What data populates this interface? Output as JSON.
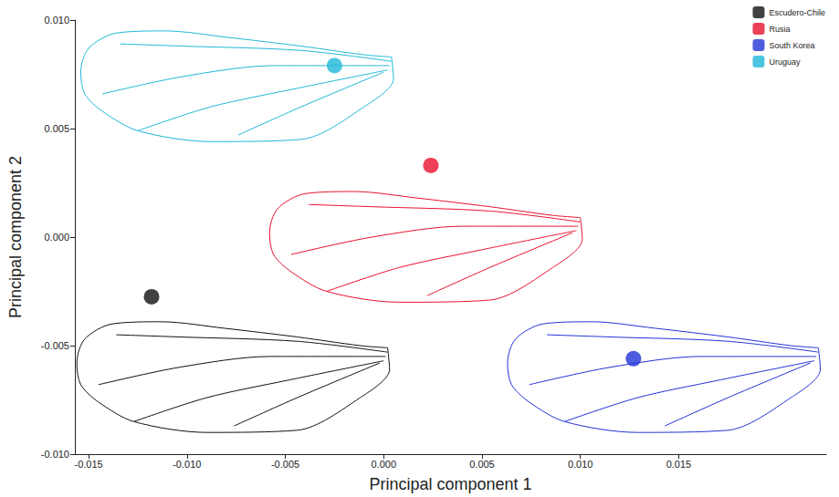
{
  "chart_data": {
    "type": "scatter",
    "xlabel": "Principal component 1",
    "ylabel": "Principal component 2",
    "xlim": [
      -0.0157,
      0.0225
    ],
    "ylim": [
      -0.01,
      0.01
    ],
    "xticks": [
      {
        "value": -0.015,
        "label": "-0.015"
      },
      {
        "value": -0.01,
        "label": "-0.010"
      },
      {
        "value": -0.005,
        "label": "-0.005"
      },
      {
        "value": 0.0,
        "label": "0.000"
      },
      {
        "value": 0.005,
        "label": "0.005"
      },
      {
        "value": 0.01,
        "label": "0.010"
      },
      {
        "value": 0.015,
        "label": "0.015"
      }
    ],
    "yticks": [
      {
        "value": -0.01,
        "label": "-0.010"
      },
      {
        "value": -0.005,
        "label": "-0.005"
      },
      {
        "value": 0.0,
        "label": "0.000"
      },
      {
        "value": 0.005,
        "label": "0.005"
      },
      {
        "value": 0.01,
        "label": "0.010"
      }
    ],
    "grid": false,
    "legend": "top-right",
    "marker": "circle",
    "series": [
      {
        "name": "Escudero-Chile",
        "color": "#111111",
        "x": [
          -0.0118
        ],
        "y": [
          -0.00275
        ]
      },
      {
        "name": "Rusia",
        "color": "#e8112d",
        "x": [
          0.0024
        ],
        "y": [
          0.0033
        ]
      },
      {
        "name": "South Korea",
        "color": "#2233d6",
        "x": [
          0.0127
        ],
        "y": [
          -0.0056
        ]
      },
      {
        "name": "Uruguay",
        "color": "#1fb8d8",
        "x": [
          -0.0025
        ],
        "y": [
          0.0079
        ]
      }
    ],
    "wings": [
      {
        "color": "#111111",
        "outline": [
          [
            0.0002,
            -0.0051
          ],
          [
            -0.0012,
            -0.005
          ],
          [
            -0.0044,
            -0.0046
          ],
          [
            -0.0081,
            -0.0042
          ],
          [
            -0.0113,
            -0.0039
          ],
          [
            -0.0138,
            -0.004
          ],
          [
            -0.0152,
            -0.0047
          ],
          [
            -0.0156,
            -0.0058
          ],
          [
            -0.0154,
            -0.0068
          ],
          [
            -0.0145,
            -0.0076
          ],
          [
            -0.0127,
            -0.0085
          ],
          [
            -0.009,
            -0.009
          ],
          [
            -0.0044,
            -0.0089
          ],
          [
            -0.0012,
            -0.0074
          ],
          [
            0.0003,
            -0.0061
          ],
          [
            0.0002,
            -0.0051
          ]
        ],
        "veins": [
          [
            [
              0.0002,
              -0.0053
            ],
            [
              -0.0044,
              -0.0048
            ],
            [
              -0.0104,
              -0.0046
            ],
            [
              -0.0136,
              -0.0045
            ]
          ],
          [
            [
              0.0001,
              -0.0055
            ],
            [
              -0.0058,
              -0.0055
            ],
            [
              -0.0104,
              -0.006
            ],
            [
              -0.0145,
              -0.0068
            ]
          ],
          [
            [
              0.0,
              -0.0057
            ],
            [
              -0.0049,
              -0.0066
            ],
            [
              -0.009,
              -0.0074
            ],
            [
              -0.0127,
              -0.0085
            ]
          ],
          [
            [
              -0.0002,
              -0.0058
            ],
            [
              -0.0044,
              -0.0074
            ],
            [
              -0.0076,
              -0.0087
            ]
          ]
        ]
      },
      {
        "color": "#e8112d",
        "outline": [
          [
            0.01,
            0.0009
          ],
          [
            0.0086,
            0.001
          ],
          [
            0.0054,
            0.0014
          ],
          [
            0.0017,
            0.0018
          ],
          [
            -0.0015,
            0.0021
          ],
          [
            -0.004,
            0.002
          ],
          [
            -0.0054,
            0.0013
          ],
          [
            -0.0058,
            0.0002
          ],
          [
            -0.0056,
            -0.0008
          ],
          [
            -0.0047,
            -0.0016
          ],
          [
            -0.0029,
            -0.0025
          ],
          [
            0.0008,
            -0.003
          ],
          [
            0.0054,
            -0.0029
          ],
          [
            0.0086,
            -0.0014
          ],
          [
            0.0101,
            -0.0001
          ],
          [
            0.01,
            0.0009
          ]
        ],
        "veins": [
          [
            [
              0.01,
              0.0007
            ],
            [
              0.0054,
              0.0012
            ],
            [
              -0.0006,
              0.0014
            ],
            [
              -0.0038,
              0.0015
            ]
          ],
          [
            [
              0.0099,
              0.0005
            ],
            [
              0.004,
              0.0005
            ],
            [
              -0.0006,
              0.0
            ],
            [
              -0.0047,
              -0.0008
            ]
          ],
          [
            [
              0.0098,
              0.0003
            ],
            [
              0.0049,
              -0.0006
            ],
            [
              0.0008,
              -0.0014
            ],
            [
              -0.0029,
              -0.0025
            ]
          ],
          [
            [
              0.0096,
              0.0002
            ],
            [
              0.0054,
              -0.0014
            ],
            [
              0.0022,
              -0.0027
            ]
          ]
        ]
      },
      {
        "color": "#2233d6",
        "outline": [
          [
            0.0221,
            -0.0051
          ],
          [
            0.0207,
            -0.005
          ],
          [
            0.0175,
            -0.0046
          ],
          [
            0.0138,
            -0.0042
          ],
          [
            0.0106,
            -0.0039
          ],
          [
            0.0081,
            -0.004
          ],
          [
            0.0067,
            -0.0047
          ],
          [
            0.0063,
            -0.0058
          ],
          [
            0.0065,
            -0.0068
          ],
          [
            0.0074,
            -0.0076
          ],
          [
            0.0092,
            -0.0085
          ],
          [
            0.0129,
            -0.009
          ],
          [
            0.0175,
            -0.0089
          ],
          [
            0.0207,
            -0.0074
          ],
          [
            0.0222,
            -0.0061
          ],
          [
            0.0221,
            -0.0051
          ]
        ],
        "veins": [
          [
            [
              0.0221,
              -0.0053
            ],
            [
              0.0175,
              -0.0048
            ],
            [
              0.0115,
              -0.0046
            ],
            [
              0.0083,
              -0.0045
            ]
          ],
          [
            [
              0.022,
              -0.0055
            ],
            [
              0.0161,
              -0.0055
            ],
            [
              0.0115,
              -0.006
            ],
            [
              0.0074,
              -0.0068
            ]
          ],
          [
            [
              0.0219,
              -0.0057
            ],
            [
              0.017,
              -0.0066
            ],
            [
              0.0129,
              -0.0074
            ],
            [
              0.0092,
              -0.0085
            ]
          ],
          [
            [
              0.0217,
              -0.0058
            ],
            [
              0.0175,
              -0.0074
            ],
            [
              0.0143,
              -0.0087
            ]
          ]
        ]
      },
      {
        "color": "#1fb8d8",
        "outline": [
          [
            0.0004,
            0.0083
          ],
          [
            -0.001,
            0.0084
          ],
          [
            -0.0042,
            0.0088
          ],
          [
            -0.0079,
            0.0092
          ],
          [
            -0.0111,
            0.0095
          ],
          [
            -0.0136,
            0.0094
          ],
          [
            -0.015,
            0.0087
          ],
          [
            -0.0154,
            0.0076
          ],
          [
            -0.0152,
            0.0066
          ],
          [
            -0.0143,
            0.0058
          ],
          [
            -0.0125,
            0.0049
          ],
          [
            -0.0088,
            0.0044
          ],
          [
            -0.0042,
            0.0045
          ],
          [
            -0.001,
            0.006
          ],
          [
            0.0005,
            0.0073
          ],
          [
            0.0004,
            0.0083
          ]
        ],
        "veins": [
          [
            [
              0.0004,
              0.0081
            ],
            [
              -0.0042,
              0.0086
            ],
            [
              -0.0102,
              0.0088
            ],
            [
              -0.0134,
              0.0089
            ]
          ],
          [
            [
              0.0003,
              0.0079
            ],
            [
              -0.0056,
              0.0079
            ],
            [
              -0.0102,
              0.0074
            ],
            [
              -0.0143,
              0.0066
            ]
          ],
          [
            [
              0.0002,
              0.0077
            ],
            [
              -0.0047,
              0.0068
            ],
            [
              -0.0088,
              0.006
            ],
            [
              -0.0125,
              0.0049
            ]
          ],
          [
            [
              0.0,
              0.0076
            ],
            [
              -0.0042,
              0.006
            ],
            [
              -0.0074,
              0.0047
            ]
          ]
        ]
      }
    ]
  }
}
